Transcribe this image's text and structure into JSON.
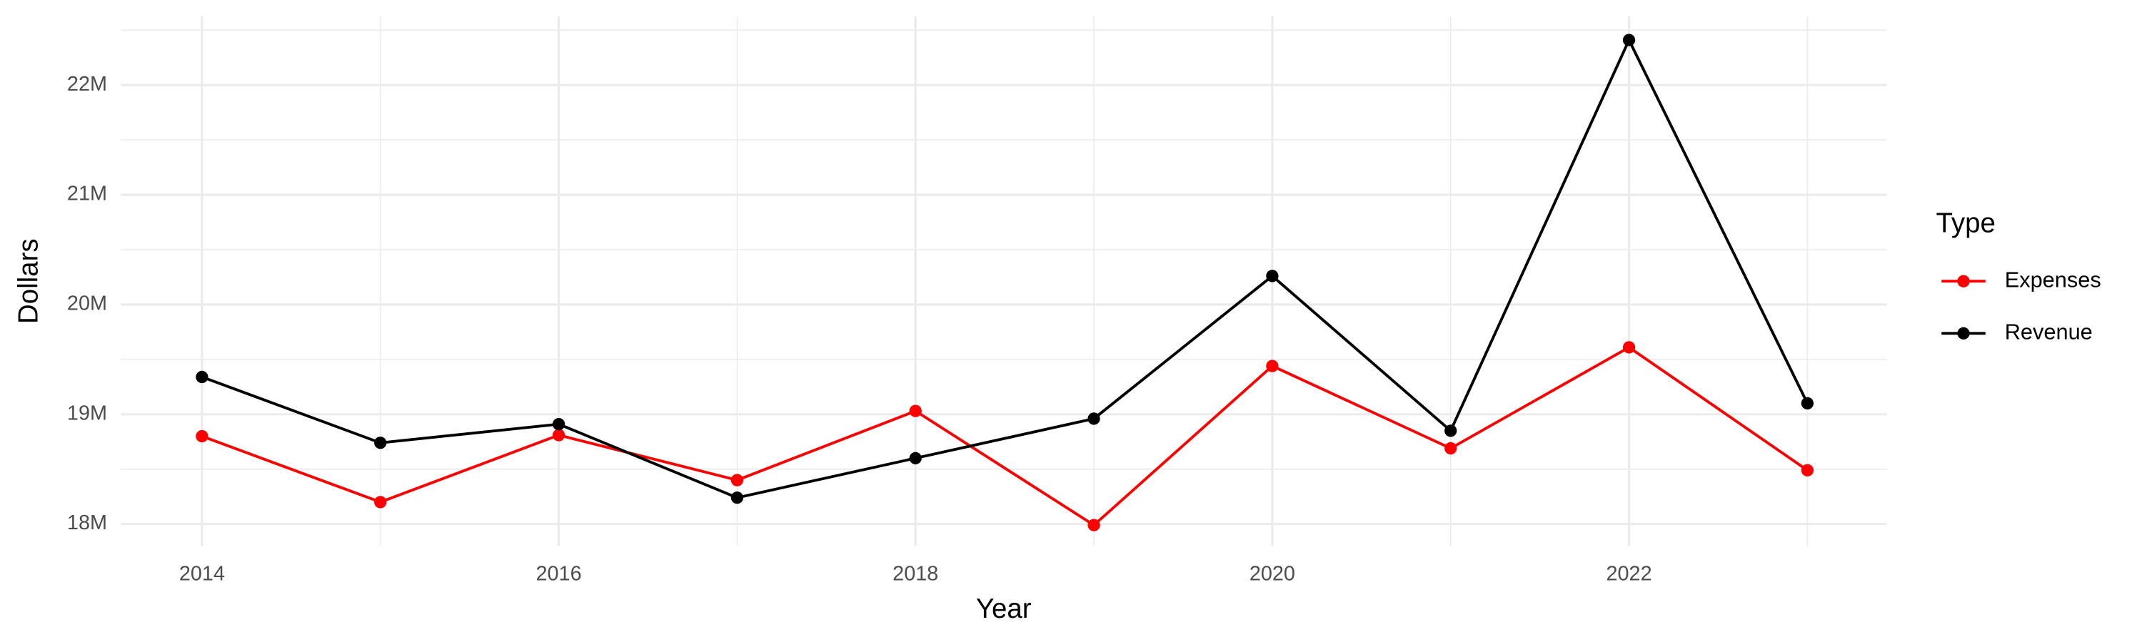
{
  "chart_data": {
    "type": "line",
    "x_label": "Year",
    "y_label": "Dollars",
    "x": [
      2014,
      2015,
      2016,
      2017,
      2018,
      2019,
      2020,
      2021,
      2022,
      2023
    ],
    "series": [
      {
        "name": "Expenses",
        "color": "#ff0000",
        "values": [
          18800000,
          18200000,
          18810000,
          18400000,
          19030000,
          17990000,
          19440000,
          18690000,
          19610000,
          18490000
        ]
      },
      {
        "name": "Revenue",
        "color": "#000000",
        "values": [
          19340000,
          18740000,
          18910000,
          18240000,
          18600000,
          18960000,
          20260000,
          18850000,
          22410000,
          19100000
        ]
      }
    ],
    "xlim": [
      2013.545,
      2023.444
    ],
    "xticks": [
      2014,
      2016,
      2018,
      2020,
      2022
    ],
    "ylim": [
      17800000,
      22625000
    ],
    "yticks": [
      {
        "value": 18000000,
        "label": "18M"
      },
      {
        "value": 19000000,
        "label": "19M"
      },
      {
        "value": 20000000,
        "label": "20M"
      },
      {
        "value": 21000000,
        "label": "21M"
      },
      {
        "value": 22000000,
        "label": "22M"
      }
    ],
    "grid": true,
    "legend": {
      "title": "Type",
      "position": "right"
    }
  }
}
